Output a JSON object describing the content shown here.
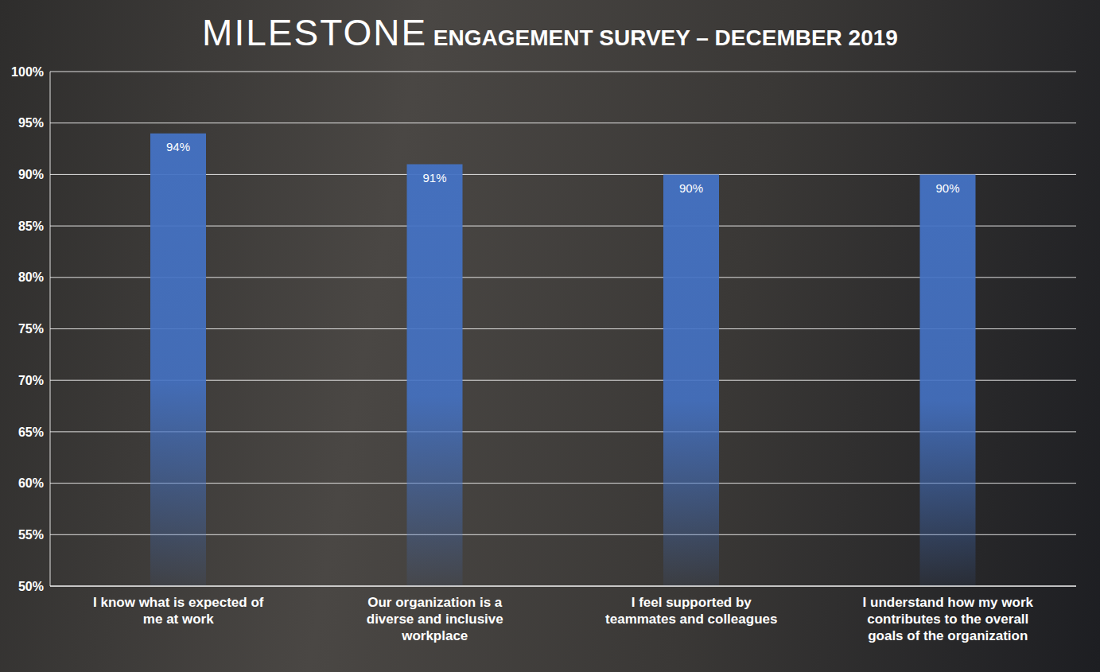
{
  "chart_data": {
    "type": "bar",
    "title": "MILESTONE ENGAGEMENT SURVEY – DECEMBER 2019",
    "categories": [
      "I know what is expected of me at work",
      "Our organization is a diverse and inclusive workplace",
      "I feel supported by teammates and colleagues",
      "I understand how my work contributes to the overall goals of the organization"
    ],
    "values": [
      94,
      91,
      90,
      90
    ],
    "value_labels": [
      "94%",
      "91%",
      "90%",
      "90%"
    ],
    "color": "#4472c4",
    "ylim": [
      50,
      100
    ],
    "yticks": [
      {
        "value": 50,
        "label": "50%"
      },
      {
        "value": 55,
        "label": "55%"
      },
      {
        "value": 60,
        "label": "60%"
      },
      {
        "value": 65,
        "label": "65%"
      },
      {
        "value": 70,
        "label": "70%"
      },
      {
        "value": 75,
        "label": "75%"
      },
      {
        "value": 80,
        "label": "80%"
      },
      {
        "value": 85,
        "label": "85%"
      },
      {
        "value": 90,
        "label": "90%"
      },
      {
        "value": 95,
        "label": "95%"
      },
      {
        "value": 100,
        "label": "100%"
      }
    ],
    "grid": true,
    "data_labels": true
  }
}
